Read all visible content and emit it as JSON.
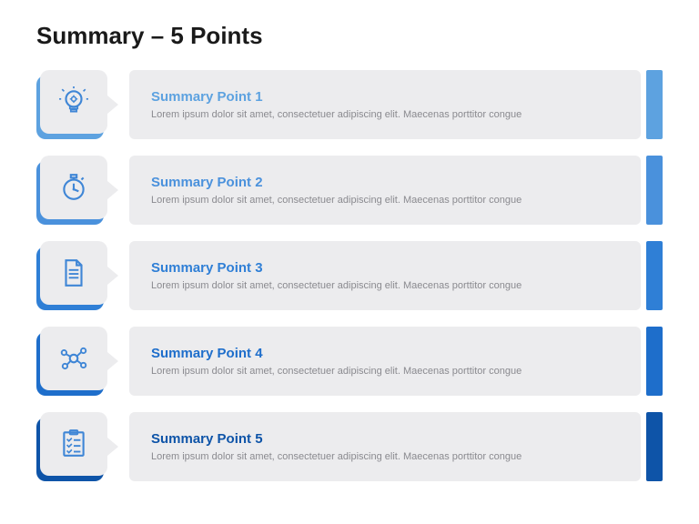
{
  "type": "infographic",
  "slide": {
    "background_color": "#ffffff",
    "title": "Summary – 5 Points",
    "title_color": "#1a1a1a",
    "title_fontsize": 26,
    "box_background": "#ececee",
    "desc_color": "#8a8a8f",
    "point_title_fontsize": 15,
    "point_desc_fontsize": 11
  },
  "points": [
    {
      "title": "Summary Point 1",
      "desc": "Lorem ipsum dolor sit amet, consectetuer adipiscing elit. Maecenas porttitor congue",
      "accent_color": "#5da2e0",
      "shadow_color": "#5da2e0",
      "title_color": "#5da2e0",
      "icon": "lightbulb",
      "icon_color": "#3f86d6"
    },
    {
      "title": "Summary Point 2",
      "desc": "Lorem ipsum dolor sit amet, consectetuer adipiscing elit. Maecenas porttitor congue",
      "accent_color": "#4a91dc",
      "shadow_color": "#4a91dc",
      "title_color": "#4a91dc",
      "icon": "stopwatch",
      "icon_color": "#3f86d6"
    },
    {
      "title": "Summary Point 3",
      "desc": "Lorem ipsum dolor sit amet, consectetuer adipiscing elit. Maecenas porttitor congue",
      "accent_color": "#2f7fd6",
      "shadow_color": "#2f7fd6",
      "title_color": "#2f7fd6",
      "icon": "document",
      "icon_color": "#3f86d6"
    },
    {
      "title": "Summary Point 4",
      "desc": "Lorem ipsum dolor sit amet, consectetuer adipiscing elit. Maecenas porttitor congue",
      "accent_color": "#1e6ecb",
      "shadow_color": "#1e6ecb",
      "title_color": "#1e6ecb",
      "icon": "network",
      "icon_color": "#3f86d6"
    },
    {
      "title": "Summary Point 5",
      "desc": "Lorem ipsum dolor sit amet, consectetuer adipiscing elit. Maecenas porttitor congue",
      "accent_color": "#0e54a8",
      "shadow_color": "#0e54a8",
      "title_color": "#0e54a8",
      "icon": "checklist",
      "icon_color": "#3f86d6"
    }
  ]
}
